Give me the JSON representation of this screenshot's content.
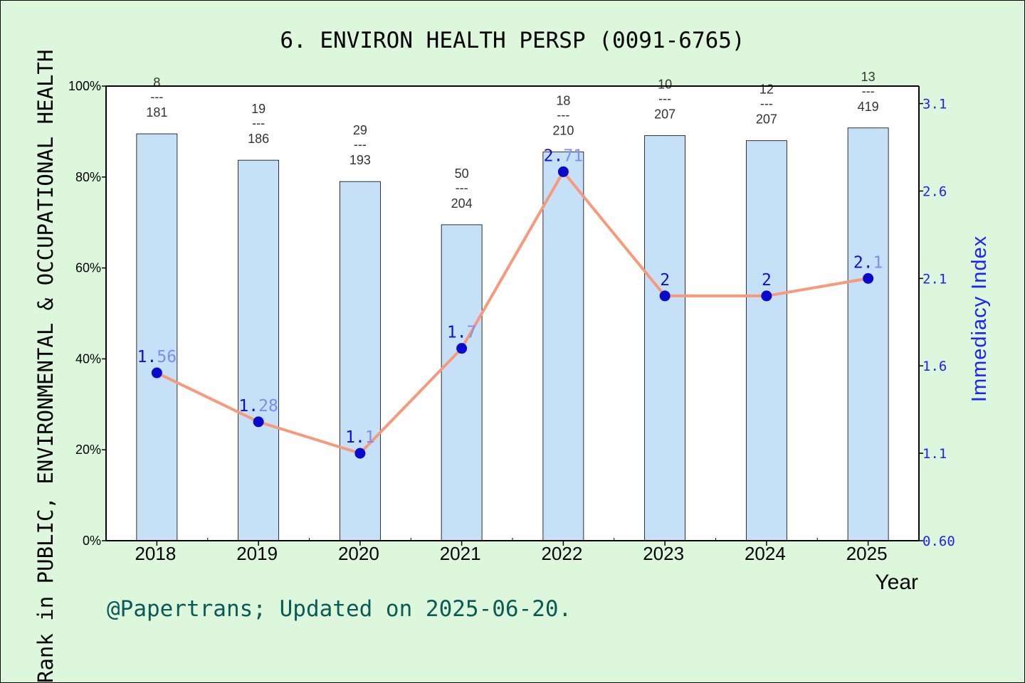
{
  "chart_data": {
    "type": "bar",
    "title": "6. ENVIRON HEALTH PERSP (0091-6765)",
    "xlabel": "Year",
    "ylabel_left": "Rank in PUBLIC, ENVIRONMENTAL & OCCUPATIONAL HEALTH",
    "ylabel_right": "Immediacy Index",
    "categories": [
      "2018",
      "2019",
      "2020",
      "2021",
      "2022",
      "2023",
      "2024",
      "2025"
    ],
    "y_left_ticks": [
      "0%",
      "20%",
      "40%",
      "60%",
      "80%",
      "100%"
    ],
    "y_right_ticks": [
      "0.60",
      "1.1",
      "1.6",
      "2.1",
      "2.6",
      "3.1"
    ],
    "ylim_left": [
      0,
      100
    ],
    "ylim_right": [
      0.6,
      3.2
    ],
    "series": [
      {
        "kind": "bar",
        "values": [
          89.5,
          83.7,
          79.0,
          69.5,
          85.5,
          89.1,
          88.0,
          90.8
        ],
        "rank_numerators": [
          "8",
          "19",
          "29",
          "50",
          "18",
          "10",
          "12",
          "13"
        ],
        "rank_denominators": [
          "181",
          "186",
          "193",
          "204",
          "210",
          "207",
          "207",
          "419"
        ],
        "rank_separator": "---"
      },
      {
        "kind": "line",
        "values": [
          1.56,
          1.28,
          1.1,
          1.7,
          2.71,
          2.0,
          2.0,
          2.1
        ],
        "labels": [
          "1.56",
          "1.28",
          "1.1",
          "1.7",
          "2.71",
          "2",
          "2",
          "2.1"
        ]
      }
    ],
    "colors": {
      "bar": "#c5e0f7",
      "line": "#f79a7b",
      "marker": "#0a0acc",
      "right_axis": "#1f1fff"
    },
    "grid": false
  },
  "credit": "@Papertrans; Updated on 2025-06-20."
}
